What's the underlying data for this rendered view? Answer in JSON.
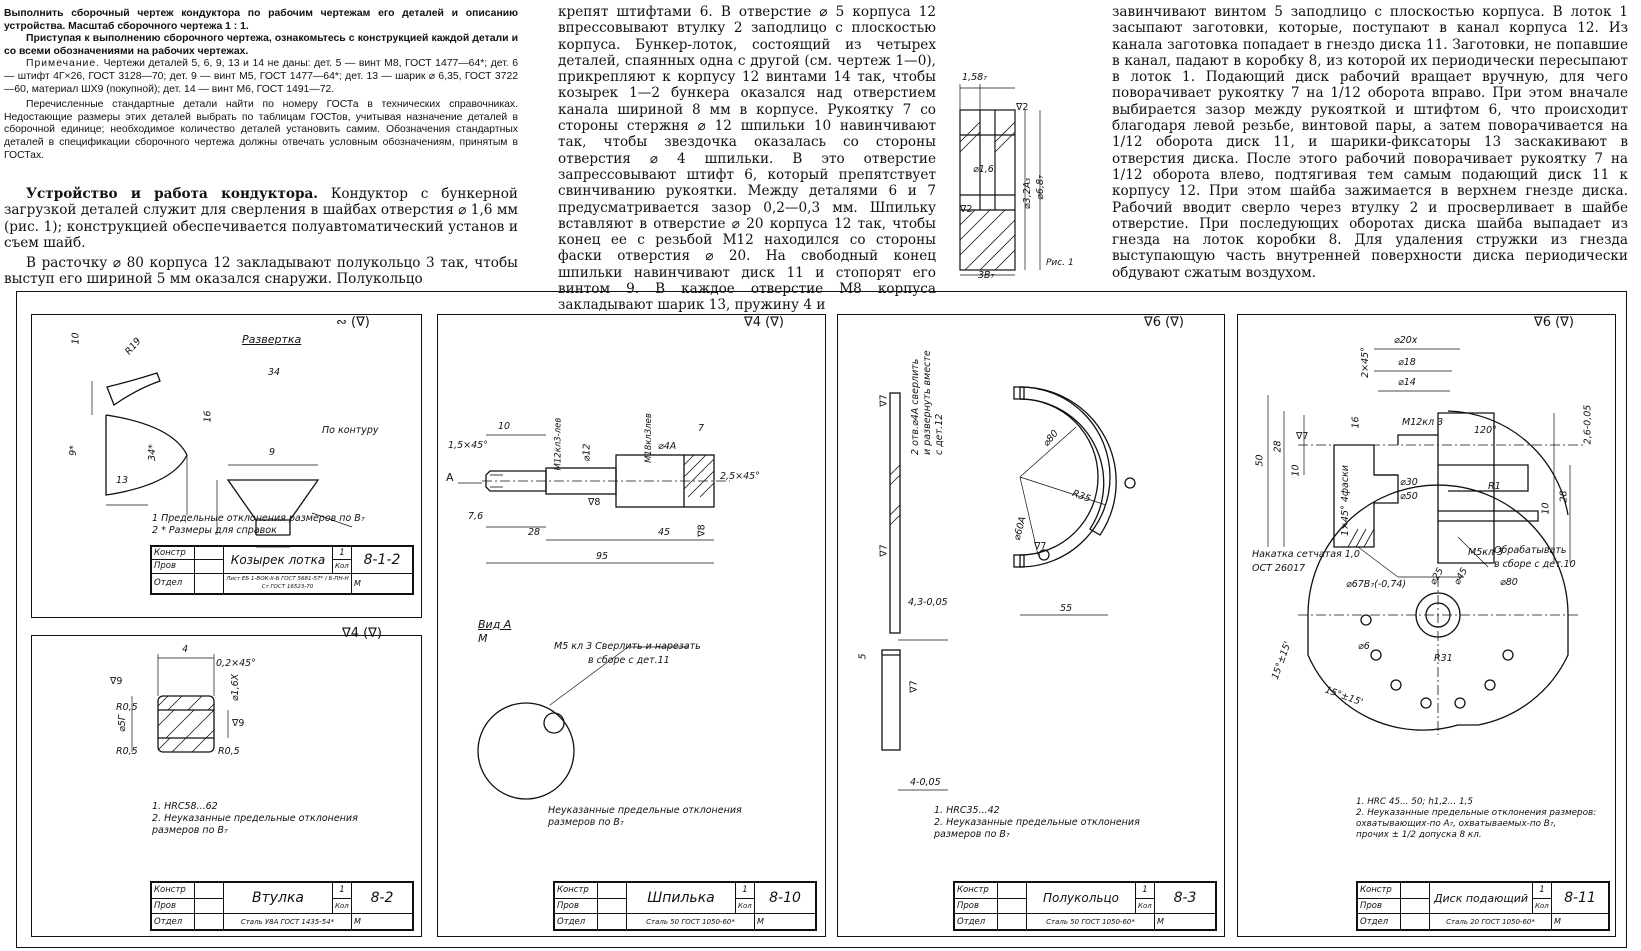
{
  "column1": {
    "intro": "Выполнить сборочный чертеж кондуктора по рабочим чертежам его деталей и описанию устройства. Масштаб сборочного чертежа 1 : 1.",
    "intro2": "Приступая к выполнению сборочного чертежа, ознакомьтесь с конструкцией каждой детали и со всеми обозначениями на рабочих чертежах.",
    "note_label": "Примечание.",
    "note": "Чертежи деталей 5, 6, 9, 13 и 14 не даны: дет. 5 — винт М8, ГОСТ 1477—64*; дет. 6 — штифт 4Г×26, ГОСТ 3128—70; дет. 9 — винт М5, ГОСТ 1477—64*; дет. 13 — шарик ⌀ 6,35, ГОСТ 3722—60, материал ШХ9 (покупной); дет. 14 — винт М6, ГОСТ 1491—72.",
    "std": "Перечисленные стандартные детали найти по номеру ГОСТа в технических справочниках. Недостающие размеры этих деталей выбрать по таблицам ГОСТов, учитывая назначение деталей в сборочной единице; необходимое количество деталей установить самим. Обозначения стандартных деталей в спецификации сборочного чертежа должны отвечать условным обозначениям, принятым в ГОСТах.",
    "heading": "Устройство и работа кондуктора.",
    "p1": "Кондуктор с бункерной загрузкой деталей служит для сверления в шайбах отверстия ⌀ 1,6 мм (рис. 1); конструкцией обеспечивается полуавтоматический установ и съем шайб.",
    "p2": "В расточку ⌀ 80 корпуса 12 закладывают полукольцо 3 так, чтобы выступ его шириной 5 мм оказался снаружи. Полукольцо"
  },
  "column2": {
    "text": "крепят штифтами 6. В отверстие ⌀ 5 корпуса 12 впрессовывают втулку 2 заподлицо с плоскостью корпуса. Бункер-лоток, состоящий из четырех деталей, спаянных одна с другой (см. чертеж 1—0), прикрепляют к корпусу 12 винтами 14 так, чтобы козырек 1—2 бункера оказался над отверстием канала шириной 8 мм в корпусе. Рукоятку 7 со стороны стержня ⌀ 12 шпильки 10 навинчивают так, чтобы звездочка оказалась со стороны отверстия ⌀ 4 шпильки. В это отверстие запрессовывают штифт 6, который препятствует свинчиванию рукоятки. Между деталями 6 и 7 предусматривается зазор 0,2—0,3 мм. Шпильку вставляют в отверстие ⌀ 20 корпуса 12 так, чтобы конец ее с резьбой М12 находился со стороны фаски отверстия ⌀ 20. На свободный конец шпильки навинчивают диск 11 и стопорят его винтом 9. В каждое отверстие М8 корпуса закладывают шарик 13, пружину 4 и"
  },
  "figure1": {
    "caption": "Рис. 1",
    "dims": [
      "1,58₇",
      "⌀1,6",
      "⌀3,2A₃",
      "⌀6,8₇",
      "3B₇"
    ],
    "rough": [
      "∇2",
      "∇2"
    ]
  },
  "column3": {
    "text": "завинчивают винтом 5 заподлицо с плоскостью корпуса. В лоток 1 засыпают заготовки, которые, поступают в канал корпуса 12. Из канала заготовка попадает в гнездо диска 11. Заготовки, не попавшие в канал, падают в коробку 8, из которой их периодически пересыпают в лоток 1. Подающий диск рабочий вращает вручную, для чего поворачивает рукоятку 7 на 1/12 оборота вправо. При этом вначале выбирается зазор между рукояткой и штифтом 6, что происходит благодаря левой резьбе, винтовой пары, а затем поворачивается на 1/12 оборота диск 11, и шарики-фиксаторы 13 заскакивают в отверстия диска. После этого рабочий поворачивает рукоятку 7 на 1/12 оборота влево, подтягивая тем самым подающий диск 11 к корпусу 12. При этом шайба зажимается в верхнем гнезде диска. Рабочий вводит сверло через втулку 2 и просверливает в шайбе отверстие. При последующих оборотах диска шайба выпадает из гнезда на лоток коробки 8. Для удаления стружки из гнезда выступающую часть внутренней поверхности диска периодически обдувают сжатым воздухом."
  },
  "sheet_8_1_2": {
    "rough": "∾ (∇)",
    "razvertka": "Развертка",
    "dims": [
      "10",
      "R19",
      "9*",
      "34*",
      "13",
      "34",
      "16",
      "9",
      "По контуру"
    ],
    "notes": [
      "1  Предельные отклонения размеров по B₇",
      "2  * Размеры для справок"
    ],
    "tb": {
      "konstr": "Констр",
      "prov": "Пров",
      "otdel": "Отдел",
      "name": "Козырек лотка",
      "qty": "1",
      "kol": "Кол",
      "code": "8-1-2",
      "mat": "Лист ЕБ 1-ВОК-II-Б ГОСТ 5681-57* / Б-ПН-Н Ст ГОСТ 16523-70",
      "m": "М"
    }
  },
  "sheet_8_2": {
    "rough": "∇4 (∇)",
    "dims": [
      "4",
      "0,2×45°",
      "∇9",
      "⌀5Г",
      "⌀1,6X",
      "R0,5",
      "R0,5",
      "R0,5",
      "∇9"
    ],
    "notes": [
      "1.  HRC58...62",
      "2.  Неуказанные предельные отклонения",
      "     размеров по B₇"
    ],
    "tb": {
      "konstr": "Констр",
      "prov": "Пров",
      "otdel": "Отдел",
      "name": "Втулка",
      "qty": "1",
      "kol": "Кол",
      "code": "8-2",
      "mat": "Сталь У8А ГОСТ 1435-54*",
      "m": "М"
    }
  },
  "sheet_8_10": {
    "rough": "∇4 (∇)",
    "dims": [
      "10",
      "1,5×45°",
      "М12кл3-лев",
      "⌀12",
      "М18кл3лев",
      "⌀4A",
      "7",
      "2,5×45°",
      "A",
      "7,6",
      "28",
      "45",
      "95",
      "∇8",
      "∇8"
    ],
    "vid": "Вид А",
    "vid_m": "М",
    "callout": [
      "М5 кл 3 Сверлить и нарезать",
      "в сборе с дет.11"
    ],
    "notes": [
      "Неуказанные предельные отклонения",
      "размеров по B₇"
    ],
    "tb": {
      "konstr": "Констр",
      "prov": "Пров",
      "otdel": "Отдел",
      "name": "Шпилька",
      "qty": "1",
      "kol": "Кол",
      "code": "8-10",
      "mat": "Сталь 50 ГОСТ 1050-60*",
      "m": "М"
    }
  },
  "sheet_8_3": {
    "rough": "∇6 (∇)",
    "dims": [
      "2 отв.⌀4A сверлить",
      "и развернуть вместе",
      "с дет.12",
      "⌀80",
      "R35",
      "⌀60A",
      "4,3-0,05",
      "5",
      "4-0,05",
      "55",
      "∇7",
      "∇7",
      "∇7",
      "∇7"
    ],
    "notes": [
      "1.  HRC35...42",
      "2.  Неуказанные предельные отклонения",
      "     размеров по B₇"
    ],
    "tb": {
      "konstr": "Констр",
      "prov": "Пров",
      "otdel": "Отдел",
      "name": "Полукольцо",
      "qty": "1",
      "kol": "Кол",
      "code": "8-3",
      "mat": "Сталь 50 ГОСТ 1050-60*",
      "m": "М"
    }
  },
  "sheet_8_11": {
    "rough": "∇6 (∇)",
    "dims": [
      "⌀20x",
      "⌀18",
      "⌀14",
      "2×45°",
      "16",
      "М12кл 3",
      "120°",
      "50",
      "28",
      "10",
      "∇7",
      "⌀30",
      "⌀50",
      "1×45° 4фаски",
      "R1",
      "М5кл 3",
      "2,6-0,05",
      "10",
      "28",
      "⌀67B₇(-0,74)",
      "⌀25",
      "⌀45",
      "⌀80",
      "⌀6",
      "R31",
      "15°±15'",
      "15°±15'"
    ],
    "nakatka": [
      "Накатка сетчатая 1,0",
      "ОСТ 26017"
    ],
    "obrab": [
      "Обрабатывать",
      "в сборе с дет.10"
    ],
    "notes": [
      "1.  HRC 45... 50; h1,2... 1,5",
      "2.  Неуказанные предельные отклонения размеров:",
      "     охватывающих-по A₇, охватываемых-по B₇,",
      "     прочих ± 1/2 допуска 8 кл."
    ],
    "tb": {
      "konstr": "Констр",
      "prov": "Пров",
      "otdel": "Отдел",
      "name": "Диск подающий",
      "qty": "1",
      "kol": "Кол",
      "code": "8-11",
      "mat": "Сталь 20 ГОСТ 1050-60*",
      "m": "М"
    }
  }
}
